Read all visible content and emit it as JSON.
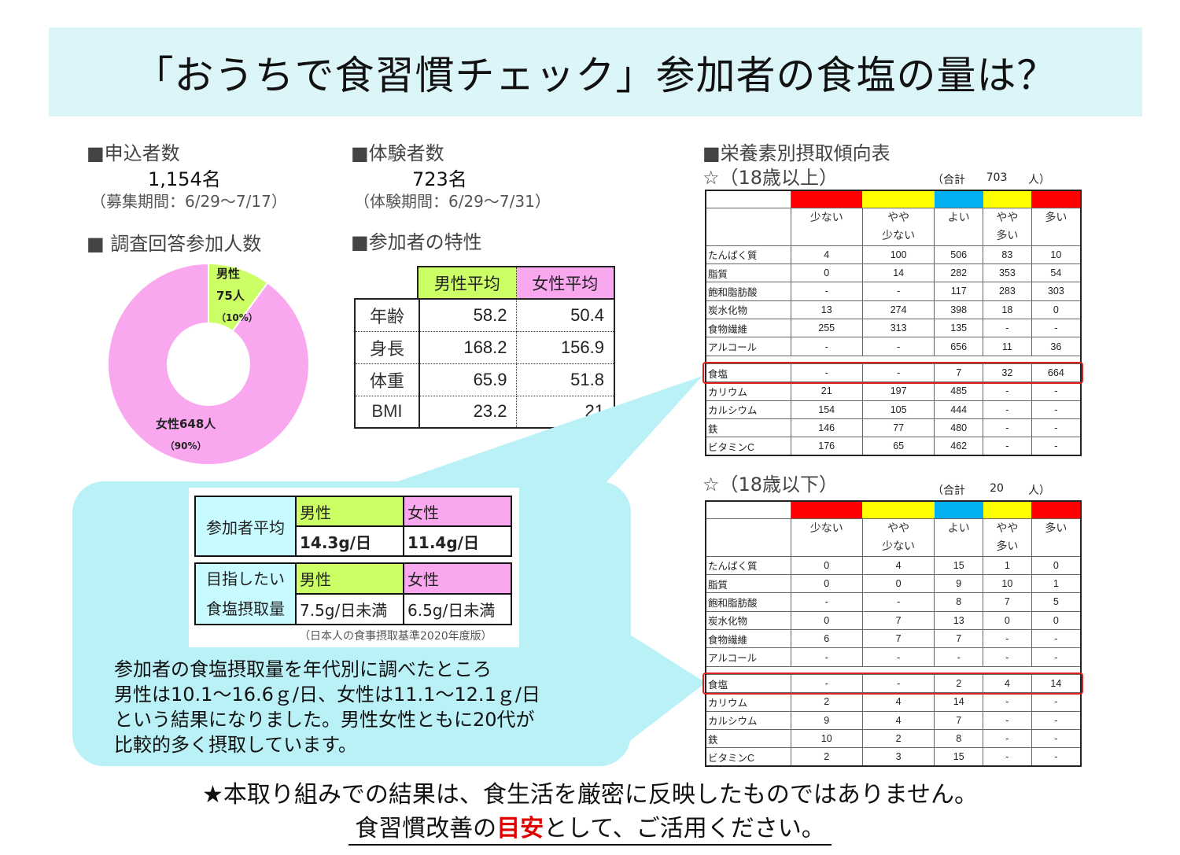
{
  "title": "「おうちで食習慣チェック」参加者の食塩の量は？",
  "applicants": {
    "heading": "■申込者数",
    "value": "1,154名",
    "note": "（募集期間：6/29〜7/17）"
  },
  "participants": {
    "heading": "■体験者数",
    "value": "723名",
    "note": "（体験期間：6/29〜7/31）"
  },
  "survey": {
    "heading": "■ 調査回答参加人数",
    "chart_data": {
      "type": "pie",
      "donut": true,
      "slices": [
        {
          "label": "男性",
          "count": 75,
          "percent": 10,
          "color": "#ccff66"
        },
        {
          "label": "女性",
          "count": 648,
          "percent": 90,
          "color": "#f9a8f0"
        }
      ]
    },
    "male_label": "男性",
    "male_count": "75人",
    "male_pct": "（10%）",
    "female_label": "女性648人",
    "female_pct": "（90%）"
  },
  "traits": {
    "heading": "■参加者の特性",
    "cols": [
      "男性平均",
      "女性平均"
    ],
    "rows": [
      {
        "label": "年齢",
        "male": "58.2",
        "female": "50.4"
      },
      {
        "label": "身長",
        "male": "168.2",
        "female": "156.9"
      },
      {
        "label": "体重",
        "male": "65.9",
        "female": "51.8"
      },
      {
        "label": "BMI",
        "male": "23.2",
        "female": "21"
      }
    ]
  },
  "salt": {
    "avg_label": "参加者平均",
    "male": "男性",
    "female": "女性",
    "avg_male": "14.3g/日",
    "avg_female": "11.4g/日",
    "target_label1": "目指したい",
    "target_label2": "食塩摂取量",
    "target_male": "7.5g/日未満",
    "target_female": "6.5g/日未満",
    "source": "（日本人の食事摂取基準2020年度版）",
    "text": [
      "参加者の食塩摂取量を年代別に調べたところ",
      "男性は10.1〜16.6ｇ/日、女性は11.1〜12.1ｇ/日",
      "という結果になりました。男性女性ともに20代が",
      "比較的多く摂取しています。"
    ]
  },
  "nutrition": {
    "heading": "■栄養素別摂取傾向表",
    "headers": [
      "少ない",
      "やや\n少ない",
      "よい",
      "やや\n多い",
      "多い"
    ],
    "colors": [
      "#ff0000",
      "#ffff00",
      "#00b0f0",
      "#ffff00",
      "#ff0000"
    ],
    "adult": {
      "title": "☆（18歳以上）",
      "total_prefix": "（合計",
      "total": "703",
      "total_suffix": "人）",
      "rows": [
        [
          "たんぱく質",
          "4",
          "100",
          "506",
          "83",
          "10"
        ],
        [
          "脂質",
          "0",
          "14",
          "282",
          "353",
          "54"
        ],
        [
          "飽和脂肪酸",
          "-",
          "-",
          "117",
          "283",
          "303"
        ],
        [
          "炭水化物",
          "13",
          "274",
          "398",
          "18",
          "0"
        ],
        [
          "食物繊維",
          "255",
          "313",
          "135",
          "-",
          "-"
        ],
        [
          "アルコール",
          "-",
          "-",
          "656",
          "11",
          "36"
        ],
        [
          "食塩",
          "-",
          "-",
          "7",
          "32",
          "664"
        ],
        [
          "カリウム",
          "21",
          "197",
          "485",
          "-",
          "-"
        ],
        [
          "カルシウム",
          "154",
          "105",
          "444",
          "-",
          "-"
        ],
        [
          "鉄",
          "146",
          "77",
          "480",
          "-",
          "-"
        ],
        [
          "ビタミンC",
          "176",
          "65",
          "462",
          "-",
          "-"
        ]
      ]
    },
    "minor": {
      "title": "☆（18歳以下）",
      "total_prefix": "（合計",
      "total": "20",
      "total_suffix": "人）",
      "rows": [
        [
          "たんぱく質",
          "0",
          "4",
          "15",
          "1",
          "0"
        ],
        [
          "脂質",
          "0",
          "0",
          "9",
          "10",
          "1"
        ],
        [
          "飽和脂肪酸",
          "-",
          "-",
          "8",
          "7",
          "5"
        ],
        [
          "炭水化物",
          "0",
          "7",
          "13",
          "0",
          "0"
        ],
        [
          "食物繊維",
          "6",
          "7",
          "7",
          "-",
          "-"
        ],
        [
          "アルコール",
          "-",
          "-",
          "-",
          "-",
          "-"
        ],
        [
          "食塩",
          "-",
          "-",
          "2",
          "4",
          "14"
        ],
        [
          "カリウム",
          "2",
          "4",
          "14",
          "-",
          "-"
        ],
        [
          "カルシウム",
          "9",
          "4",
          "7",
          "-",
          "-"
        ],
        [
          "鉄",
          "10",
          "2",
          "8",
          "-",
          "-"
        ],
        [
          "ビタミンC",
          "2",
          "3",
          "15",
          "-",
          "-"
        ]
      ]
    }
  },
  "footer": {
    "line1": "★本取り組みでの結果は、食生活を厳密に反映したものではありません。",
    "line2_a": "食習慣改善の",
    "line2_em": "目安",
    "line2_b": "として、ご活用ください。"
  }
}
